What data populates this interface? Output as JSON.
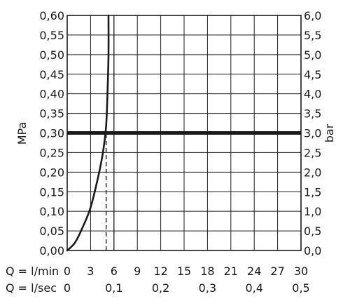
{
  "chart_data": {
    "type": "line",
    "y_left": {
      "label": "MPa",
      "range": [
        0,
        0.6
      ],
      "ticks": [
        "0,00",
        "0,05",
        "0,10",
        "0,15",
        "0,20",
        "0,25",
        "0,30",
        "0,35",
        "0,40",
        "0,45",
        "0,50",
        "0,55",
        "0,60"
      ]
    },
    "y_right": {
      "label": "bar",
      "range": [
        0,
        6
      ],
      "ticks": [
        "0,0",
        "0,5",
        "1,0",
        "1,5",
        "2,0",
        "2,5",
        "3,0",
        "3,5",
        "4,0",
        "4,5",
        "5,0",
        "5,5",
        "6,0"
      ]
    },
    "x_lmin": {
      "label": "Q = l/min",
      "range": [
        0,
        30
      ],
      "ticks": [
        "0",
        "3",
        "6",
        "9",
        "12",
        "15",
        "18",
        "21",
        "24",
        "27",
        "30"
      ]
    },
    "x_lsec": {
      "label": "Q = l/sec",
      "range": [
        0,
        0.5
      ],
      "ticks": [
        "0",
        "0,1",
        "0,2",
        "0,3",
        "0,4",
        "0,5"
      ]
    },
    "grid": true,
    "series": [
      {
        "x": [
          0,
          1,
          2,
          3,
          4,
          4.5,
          4.8,
          5.0,
          5.1,
          5.2,
          5.3,
          5.3
        ],
        "y": [
          0,
          0.02,
          0.06,
          0.11,
          0.19,
          0.24,
          0.28,
          0.32,
          0.36,
          0.42,
          0.5,
          0.6
        ]
      }
    ],
    "reference_lines": [
      {
        "orientation": "horizontal",
        "y": 0.3
      },
      {
        "orientation": "vertical",
        "x": 5.0,
        "y_from": 0,
        "y_to": 0.3,
        "dashed": true
      },
      {
        "orientation": "vertical",
        "x": 6.0,
        "y_from": 0,
        "y_to": 0.6
      }
    ]
  }
}
